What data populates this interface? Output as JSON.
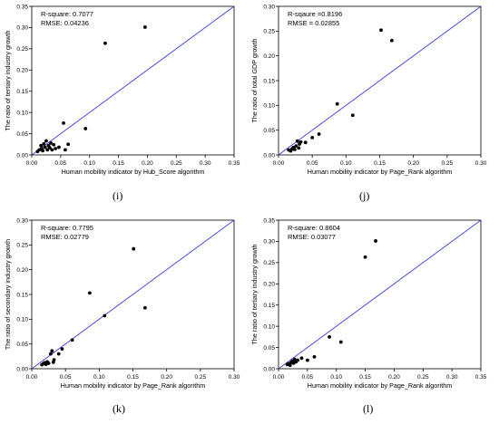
{
  "chart_data": [
    {
      "type": "scatter",
      "panel_label": "(i)",
      "xlabel": "Human mobility indicator by Hub_Score algorithm",
      "ylabel": "The ratio of tertiary industry growth",
      "xlim": [
        0,
        0.35
      ],
      "ylim": [
        0,
        0.35
      ],
      "x_ticks": [
        "0.00",
        "0.05",
        "0.10",
        "0.15",
        "0.20",
        "0.25",
        "0.30",
        "0.35"
      ],
      "y_ticks": [
        "0.00",
        "0.05",
        "0.10",
        "0.15",
        "0.20",
        "0.25",
        "0.30",
        "0.35"
      ],
      "annotations": [
        "R-square: 0.7077",
        "RMSE: 0.04236"
      ],
      "fit_line": [
        [
          0,
          0
        ],
        [
          0.35,
          0.35
        ]
      ],
      "colors": {
        "points": "#000000",
        "fit_line": "#3b3bd6"
      },
      "points": [
        [
          0.01,
          0.008
        ],
        [
          0.013,
          0.012
        ],
        [
          0.016,
          0.022
        ],
        [
          0.017,
          0.015
        ],
        [
          0.019,
          0.01
        ],
        [
          0.021,
          0.026
        ],
        [
          0.023,
          0.018
        ],
        [
          0.025,
          0.033
        ],
        [
          0.027,
          0.012
        ],
        [
          0.029,
          0.022
        ],
        [
          0.031,
          0.017
        ],
        [
          0.033,
          0.028
        ],
        [
          0.035,
          0.012
        ],
        [
          0.038,
          0.024
        ],
        [
          0.041,
          0.015
        ],
        [
          0.047,
          0.018
        ],
        [
          0.055,
          0.075
        ],
        [
          0.058,
          0.012
        ],
        [
          0.063,
          0.025
        ],
        [
          0.093,
          0.062
        ],
        [
          0.127,
          0.263
        ],
        [
          0.196,
          0.301
        ]
      ]
    },
    {
      "type": "scatter",
      "panel_label": "(j)",
      "xlabel": "Human mobility indicator by Page_Rank algorithm",
      "ylabel": "The ratio of total GDP growth",
      "xlim": [
        0,
        0.3
      ],
      "ylim": [
        0,
        0.3
      ],
      "x_ticks": [
        "0.00",
        "0.05",
        "0.10",
        "0.15",
        "0.20",
        "0.25",
        "0.30"
      ],
      "y_ticks": [
        "0.00",
        "0.05",
        "0.10",
        "0.15",
        "0.20",
        "0.25",
        "0.30"
      ],
      "annotations": [
        "R-sqaure =0.8196",
        "RMSE = 0.02855"
      ],
      "fit_line": [
        [
          0,
          0
        ],
        [
          0.3,
          0.3
        ]
      ],
      "colors": {
        "points": "#000000",
        "fit_line": "#3b3bd6"
      },
      "points": [
        [
          0.015,
          0.01
        ],
        [
          0.018,
          0.008
        ],
        [
          0.02,
          0.012
        ],
        [
          0.022,
          0.015
        ],
        [
          0.024,
          0.011
        ],
        [
          0.026,
          0.018
        ],
        [
          0.028,
          0.028
        ],
        [
          0.03,
          0.014
        ],
        [
          0.031,
          0.022
        ],
        [
          0.033,
          0.026
        ],
        [
          0.04,
          0.025
        ],
        [
          0.05,
          0.035
        ],
        [
          0.06,
          0.042
        ],
        [
          0.087,
          0.103
        ],
        [
          0.11,
          0.08
        ],
        [
          0.152,
          0.252
        ],
        [
          0.168,
          0.231
        ]
      ]
    },
    {
      "type": "scatter",
      "panel_label": "(k)",
      "xlabel": "Human mobility indicator by Page_Rank algorithm",
      "ylabel": "The ratio of secondary industry growth",
      "xlim": [
        0,
        0.3
      ],
      "ylim": [
        0,
        0.3
      ],
      "x_ticks": [
        "0.00",
        "0.05",
        "0.10",
        "0.15",
        "0.20",
        "0.25",
        "0.30"
      ],
      "y_ticks": [
        "0.00",
        "0.05",
        "0.10",
        "0.15",
        "0.20",
        "0.25",
        "0.30"
      ],
      "annotations": [
        "R-square: 0.7795",
        "RMSE: 0.02779"
      ],
      "fit_line": [
        [
          0,
          0
        ],
        [
          0.3,
          0.3
        ]
      ],
      "colors": {
        "points": "#000000",
        "fit_line": "#3b3bd6"
      },
      "points": [
        [
          0.015,
          0.008
        ],
        [
          0.017,
          0.01
        ],
        [
          0.019,
          0.012
        ],
        [
          0.021,
          0.009
        ],
        [
          0.023,
          0.014
        ],
        [
          0.025,
          0.011
        ],
        [
          0.028,
          0.03
        ],
        [
          0.03,
          0.036
        ],
        [
          0.032,
          0.013
        ],
        [
          0.033,
          0.018
        ],
        [
          0.04,
          0.03
        ],
        [
          0.045,
          0.04
        ],
        [
          0.06,
          0.058
        ],
        [
          0.086,
          0.153
        ],
        [
          0.108,
          0.107
        ],
        [
          0.151,
          0.242
        ],
        [
          0.168,
          0.123
        ]
      ]
    },
    {
      "type": "scatter",
      "panel_label": "(l)",
      "xlabel": "Human mobility indicator by Page_Rank algorithm",
      "ylabel": "The ratio of tertiary industry growth",
      "xlim": [
        0,
        0.35
      ],
      "ylim": [
        0,
        0.35
      ],
      "x_ticks": [
        "0.00",
        "0.05",
        "0.10",
        "0.15",
        "0.20",
        "0.25",
        "0.30",
        "0.35"
      ],
      "y_ticks": [
        "0.00",
        "0.05",
        "0.10",
        "0.15",
        "0.20",
        "0.25",
        "0.30",
        "0.35"
      ],
      "annotations": [
        "R-square: 0.8604",
        "RMSE: 0.03077"
      ],
      "fit_line": [
        [
          0,
          0
        ],
        [
          0.35,
          0.35
        ]
      ],
      "colors": {
        "points": "#000000",
        "fit_line": "#3b3bd6"
      },
      "points": [
        [
          0.015,
          0.01
        ],
        [
          0.018,
          0.012
        ],
        [
          0.02,
          0.008
        ],
        [
          0.022,
          0.015
        ],
        [
          0.024,
          0.018
        ],
        [
          0.026,
          0.013
        ],
        [
          0.028,
          0.022
        ],
        [
          0.03,
          0.016
        ],
        [
          0.033,
          0.02
        ],
        [
          0.04,
          0.025
        ],
        [
          0.05,
          0.02
        ],
        [
          0.062,
          0.028
        ],
        [
          0.088,
          0.075
        ],
        [
          0.108,
          0.063
        ],
        [
          0.15,
          0.263
        ],
        [
          0.168,
          0.301
        ]
      ]
    }
  ]
}
